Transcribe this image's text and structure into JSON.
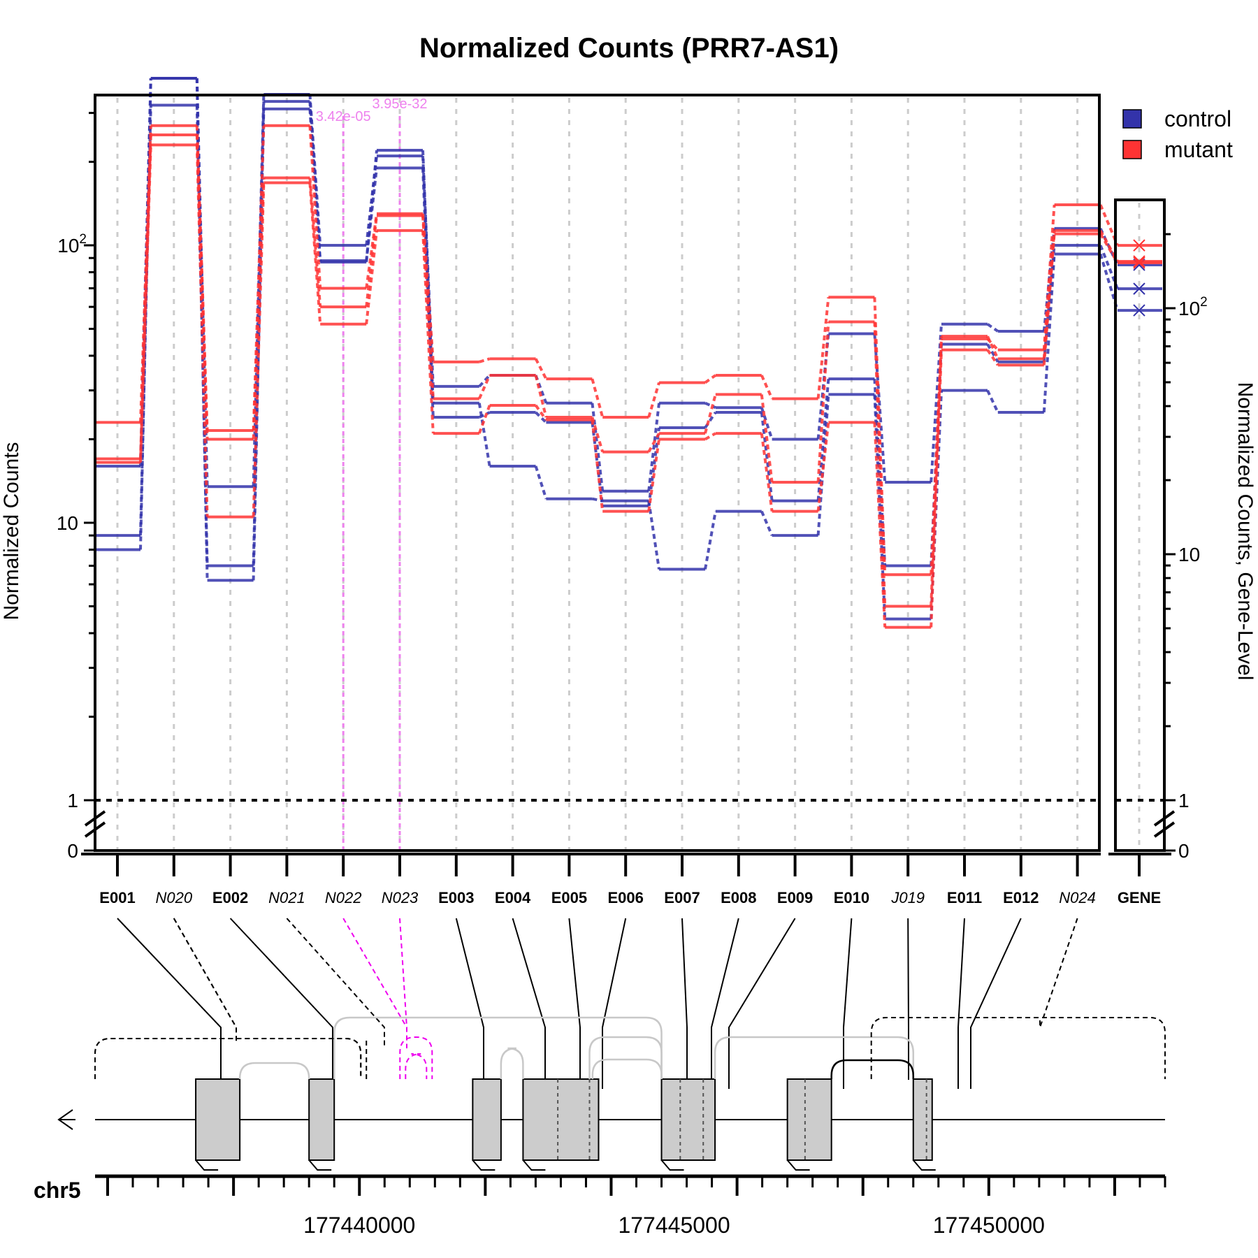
{
  "chart_data": {
    "type": "line",
    "title": "Normalized Counts (PRR7-AS1)",
    "ylabel": "Normalized Counts",
    "ylabel_right": "Normalized Counts, Gene-Level",
    "y_scale": "log",
    "y_tick_labels": [
      {
        "label": "0",
        "value": 0
      },
      {
        "label": "1",
        "value": 1
      },
      {
        "label": "10",
        "value": 10
      },
      {
        "label": "10",
        "sup": "2",
        "value": 100
      }
    ],
    "features": [
      {
        "id": "E001",
        "kind": "exon"
      },
      {
        "id": "N020",
        "kind": "novel"
      },
      {
        "id": "E002",
        "kind": "exon"
      },
      {
        "id": "N021",
        "kind": "novel"
      },
      {
        "id": "N022",
        "kind": "novel"
      },
      {
        "id": "N023",
        "kind": "novel"
      },
      {
        "id": "E003",
        "kind": "exon"
      },
      {
        "id": "E004",
        "kind": "exon"
      },
      {
        "id": "E005",
        "kind": "exon"
      },
      {
        "id": "E006",
        "kind": "exon"
      },
      {
        "id": "E007",
        "kind": "exon"
      },
      {
        "id": "E008",
        "kind": "exon"
      },
      {
        "id": "E009",
        "kind": "exon"
      },
      {
        "id": "E010",
        "kind": "exon"
      },
      {
        "id": "J019",
        "kind": "novel"
      },
      {
        "id": "E011",
        "kind": "exon"
      },
      {
        "id": "E012",
        "kind": "exon"
      },
      {
        "id": "N024",
        "kind": "novel"
      }
    ],
    "gene_label": "GENE",
    "series": [
      {
        "name": "control",
        "color": "#3333aa",
        "values": [
          16,
          400,
          13.5,
          350,
          100,
          210,
          31,
          34,
          27,
          13,
          27,
          26,
          20,
          48,
          14,
          52,
          49,
          115
        ]
      },
      {
        "name": "control",
        "color": "#3333aa",
        "values": [
          9,
          320,
          7,
          330,
          88,
          190,
          24,
          25,
          23,
          11.5,
          22,
          25,
          12,
          33,
          7,
          44,
          38,
          100
        ]
      },
      {
        "name": "control",
        "color": "#3333aa",
        "values": [
          8,
          400,
          6.2,
          310,
          87,
          220,
          27,
          16,
          12.2,
          12,
          6.8,
          11,
          9,
          29,
          4.5,
          30,
          25,
          93
        ]
      },
      {
        "name": "mutant",
        "color": "#ff3333",
        "values": [
          23,
          270,
          21.5,
          270,
          70,
          130,
          38,
          39,
          33,
          24,
          32,
          34,
          28,
          65,
          6.5,
          46,
          42,
          140
        ]
      },
      {
        "name": "mutant",
        "color": "#ff3333",
        "values": [
          17,
          250,
          20,
          175,
          60,
          128,
          28,
          34,
          24,
          18,
          21,
          29,
          14,
          53,
          5,
          47,
          39,
          113
        ]
      },
      {
        "name": "mutant",
        "color": "#ff3333",
        "values": [
          16.5,
          230,
          10.5,
          168,
          52,
          113,
          21,
          26.5,
          23.5,
          11,
          20,
          21,
          11,
          23,
          4.2,
          42,
          37,
          110
        ]
      }
    ],
    "gene_level": [
      {
        "series": "control",
        "values": [
          150,
          120,
          98
        ]
      },
      {
        "series": "mutant",
        "values": [
          180,
          155,
          153
        ]
      }
    ],
    "significant": [
      {
        "feature": "N022",
        "pvalue": "3.42e-05"
      },
      {
        "feature": "N023",
        "pvalue": "3.95e-32"
      }
    ],
    "legend": {
      "position": "top-right",
      "entries": [
        {
          "label": "control",
          "color": "#3333aa"
        },
        {
          "label": "mutant",
          "color": "#ff3333"
        }
      ]
    },
    "grid": true,
    "chromosome": "chr5",
    "genomic_axis": {
      "range": [
        177435800,
        177452800
      ],
      "tick_labels": [
        "177440000",
        "177445000",
        "177450000"
      ]
    },
    "gene_model": {
      "exons": [
        [
          177437400,
          177438100
        ],
        [
          177439200,
          177439600
        ],
        [
          177441800,
          177442250
        ],
        [
          177442600,
          177443800
        ],
        [
          177444800,
          177445650
        ],
        [
          177446800,
          177447500
        ],
        [
          177448800,
          177449100
        ]
      ],
      "novel_splice_junction": [
        177440700,
        177441100
      ]
    }
  }
}
